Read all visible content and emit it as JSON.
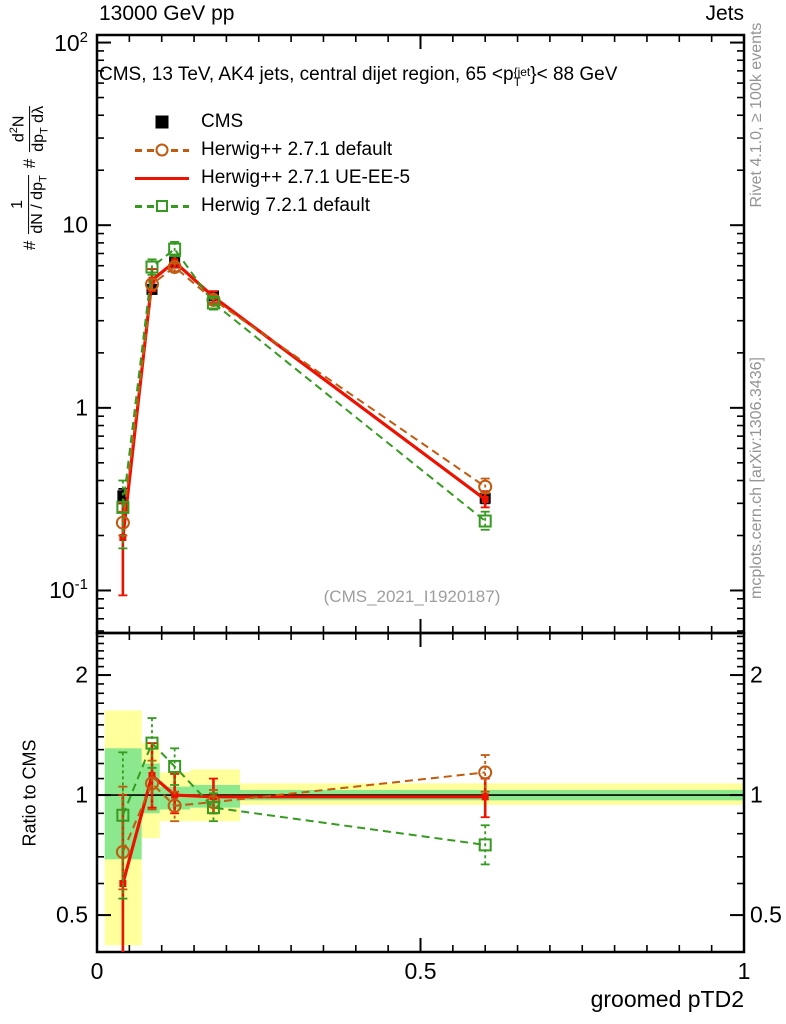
{
  "header": {
    "left_label": "13000 GeV pp",
    "right_label": "Jets"
  },
  "side_labels": {
    "rivet": "Rivet 4.1.0, ≥ 100k events",
    "mcplots": "mcplots.cern.ch [arXiv:1306.3436]"
  },
  "watermark": "(CMS_2021_I1920187)",
  "title": {
    "text_before": "CMS, 13 TeV, AK4 jets, central dijet region, 65 <",
    "p_symbol": "p",
    "superscript": "{jet",
    "subscript": "T",
    "text_after": "}< 88 GeV"
  },
  "y_axis_label": {
    "segments": [
      {
        "type": "text",
        "t": "#"
      },
      {
        "type": "frac",
        "num": [
          [
            "1",
            ""
          ]
        ],
        "den": [
          [
            "dN / dp",
            ""
          ],
          [
            "T",
            "sub"
          ]
        ]
      },
      {
        "type": "text",
        "t": "#"
      },
      {
        "type": "frac",
        "num": [
          [
            "d",
            ""
          ],
          [
            "2",
            "sup"
          ],
          [
            "N",
            ""
          ]
        ],
        "den": [
          [
            "dp",
            ""
          ],
          [
            "T",
            "sub"
          ],
          [
            " dλ",
            ""
          ]
        ]
      }
    ]
  },
  "ratio_label": "Ratio to CMS",
  "x_axis_label": "groomed pTD2",
  "legend": {
    "items": [
      {
        "label": "CMS",
        "marker": "filled-square",
        "line": "none",
        "color": "#000000"
      },
      {
        "label": "Herwig++ 2.7.1 default",
        "marker": "open-circle",
        "line": "dashed",
        "color": "#c25a10"
      },
      {
        "label": "Herwig++ 2.7.1 UE-EE-5",
        "marker": "none",
        "line": "solid",
        "color": "#ee1100"
      },
      {
        "label": "Herwig 7.2.1 default",
        "marker": "open-square",
        "line": "dashed",
        "color": "#379a20"
      }
    ]
  },
  "chart_data": {
    "type": "line",
    "title": "CMS, 13 TeV, AK4 jets, central dijet region, 65 < pT{jet} < 88 GeV",
    "xlabel": "groomed pTD2",
    "ylabel": "# 1/(dN/dpT) # d2N/(dpT dlambda)",
    "legend_position": "top-left-inside",
    "grid": false,
    "x": [
      0.04,
      0.085,
      0.12,
      0.18,
      0.6
    ],
    "bin_edges": [
      0.012,
      0.069,
      0.097,
      0.144,
      0.221,
      1.0
    ],
    "xlim": [
      0,
      1
    ],
    "x_tick_labels": [
      {
        "v": 0,
        "t": "0"
      },
      {
        "v": 0.5,
        "t": "0.5"
      },
      {
        "v": 1,
        "t": "1"
      }
    ],
    "x_minor_step": 0.05,
    "main_panel": {
      "ylog": true,
      "ylim": [
        0.0585,
        110
      ],
      "ytick_labels": [
        {
          "v": 100,
          "base": "10",
          "exp": "2"
        },
        {
          "v": 10,
          "base": "10"
        },
        {
          "v": 1,
          "base": "1"
        },
        {
          "v": 0.1,
          "base": "10",
          "exp": "-1"
        }
      ],
      "series": [
        {
          "name": "CMS",
          "color": "#000000",
          "line": "none",
          "dashed": false,
          "marker": "filled-square",
          "marker_size": 11,
          "values": [
            0.33,
            4.45,
            6.3,
            4.1,
            0.32
          ],
          "err_lo": [
            0.3,
            4.25,
            6.05,
            3.95,
            0.3
          ],
          "err_hi": [
            0.36,
            4.65,
            6.55,
            4.3,
            0.34
          ]
        },
        {
          "name": "Herwig++ 2.7.1 UE-EE-5",
          "color": "#ee1100",
          "line": "solid",
          "dashed": false,
          "marker": "filled-square",
          "marker_size": 7,
          "values": [
            0.195,
            5.0,
            6.3,
            4.05,
            0.315
          ],
          "err_lo": [
            0.094,
            4.35,
            5.85,
            3.75,
            0.285
          ],
          "err_hi": [
            0.3,
            5.75,
            6.8,
            4.35,
            0.35
          ]
        },
        {
          "name": "Herwig++ 2.7.1 default",
          "color": "#c25a10",
          "line": "dashed",
          "dashed": true,
          "marker": "open-circle",
          "marker_size": 12,
          "values": [
            0.235,
            4.75,
            5.9,
            3.9,
            0.37
          ],
          "err_lo": [
            0.2,
            4.45,
            5.6,
            3.7,
            0.34
          ],
          "err_hi": [
            0.27,
            5.05,
            6.2,
            4.1,
            0.41
          ]
        },
        {
          "name": "Herwig 7.2.1 default",
          "color": "#379a20",
          "line": "dashed",
          "dashed": true,
          "marker": "open-square",
          "marker_size": 11,
          "values": [
            0.285,
            5.9,
            7.4,
            3.75,
            0.24
          ],
          "err_lo": [
            0.17,
            5.35,
            6.75,
            3.45,
            0.215
          ],
          "err_hi": [
            0.4,
            6.5,
            8.1,
            4.05,
            0.27
          ]
        }
      ]
    },
    "ratio_panel": {
      "ylog": true,
      "ylim": [
        0.404,
        2.55
      ],
      "reference_line": 1,
      "ytick_labels": [
        {
          "v": 2,
          "t": "2"
        },
        {
          "v": 1,
          "t": "1"
        },
        {
          "v": 0.5,
          "t": "0.5"
        }
      ],
      "bands": {
        "outer_color": "#ffff9c",
        "inner_color": "#8ce88c",
        "outer": [
          [
            0.42,
            1.63
          ],
          [
            0.78,
            1.35
          ],
          [
            0.86,
            1.14
          ],
          [
            0.86,
            1.16
          ],
          [
            0.945,
            1.07
          ]
        ],
        "inner": [
          [
            0.69,
            1.31
          ],
          [
            0.9,
            1.2
          ],
          [
            0.92,
            1.05
          ],
          [
            0.93,
            1.06
          ],
          [
            0.97,
            1.03
          ]
        ]
      },
      "series": [
        {
          "name": "Herwig++ 2.7.1 UE-EE-5",
          "color": "#ee1100",
          "line": "solid",
          "dashed": false,
          "marker": "filled-square",
          "marker_size": 7,
          "values": [
            0.6,
            1.12,
            1.0,
            0.99,
            0.99
          ],
          "err_lo": [
            0.38,
            0.93,
            0.9,
            0.9,
            0.88
          ],
          "err_hi": [
            1.0,
            1.35,
            1.13,
            1.1,
            1.1
          ]
        },
        {
          "name": "Herwig++ 2.7.1 default",
          "color": "#c25a10",
          "line": "dashed",
          "dashed": true,
          "marker": "open-circle",
          "marker_size": 12,
          "values": [
            0.72,
            1.07,
            0.94,
            0.96,
            1.14
          ],
          "err_lo": [
            0.58,
            0.92,
            0.86,
            0.9,
            1.02
          ],
          "err_hi": [
            1.05,
            1.22,
            1.02,
            1.03,
            1.26
          ]
        },
        {
          "name": "Herwig 7.2.1 default",
          "color": "#379a20",
          "line": "dashed",
          "dashed": true,
          "marker": "open-square",
          "marker_size": 11,
          "values": [
            0.89,
            1.35,
            1.18,
            0.93,
            0.75
          ],
          "err_lo": [
            0.55,
            1.17,
            1.06,
            0.86,
            0.67
          ],
          "err_hi": [
            1.28,
            1.56,
            1.31,
            1.01,
            0.84
          ]
        }
      ]
    }
  }
}
